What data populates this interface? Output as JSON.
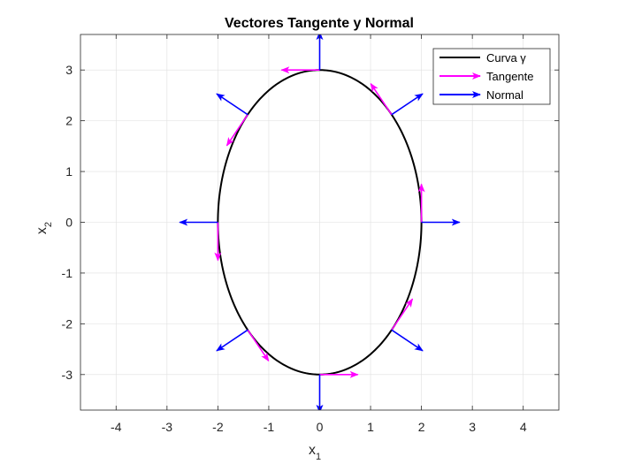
{
  "chart_data": {
    "type": "line",
    "title": "Vectores Tangente y Normal",
    "xlabel": {
      "base": "x",
      "subscript": "1"
    },
    "ylabel": {
      "base": "x",
      "subscript": "2"
    },
    "xlim": [
      -4.7,
      4.7
    ],
    "ylim": [
      -3.7,
      3.7
    ],
    "xticks": [
      -4,
      -3,
      -2,
      -1,
      0,
      1,
      2,
      3,
      4
    ],
    "yticks": [
      -3,
      -2,
      -1,
      0,
      1,
      2,
      3
    ],
    "xtick_labels": [
      "-4",
      "-3",
      "-2",
      "-1",
      "0",
      "1",
      "2",
      "3",
      "4"
    ],
    "ytick_labels": [
      "-3",
      "-2",
      "-1",
      "0",
      "1",
      "2",
      "3"
    ],
    "grid": true,
    "legend_position": "top-right",
    "curve": {
      "name": "Curva γ",
      "color": "#000000",
      "equation": "x1 = 2cos(t), x2 = 3sin(t)",
      "a": 2,
      "b": 3
    },
    "tangent_series": {
      "name": "Tangente",
      "color": "#ff00ff",
      "vectors": [
        {
          "x": 2.0,
          "y": 0.0,
          "u": 0.0,
          "v": 0.75
        },
        {
          "x": 1.414,
          "y": 2.121,
          "u": -0.41,
          "v": 0.61
        },
        {
          "x": 0.0,
          "y": 3.0,
          "u": -0.75,
          "v": 0.0
        },
        {
          "x": -1.414,
          "y": 2.121,
          "u": -0.41,
          "v": -0.61
        },
        {
          "x": -2.0,
          "y": 0.0,
          "u": 0.0,
          "v": -0.75
        },
        {
          "x": -1.414,
          "y": -2.121,
          "u": 0.41,
          "v": -0.61
        },
        {
          "x": 0.0,
          "y": -3.0,
          "u": 0.75,
          "v": 0.0
        },
        {
          "x": 1.414,
          "y": -2.121,
          "u": 0.41,
          "v": 0.61
        }
      ]
    },
    "normal_series": {
      "name": "Normal",
      "color": "#0000ff",
      "vectors": [
        {
          "x": 2.0,
          "y": 0.0,
          "u": 0.75,
          "v": 0.0
        },
        {
          "x": 1.414,
          "y": 2.121,
          "u": 0.61,
          "v": 0.41
        },
        {
          "x": 0.0,
          "y": 3.0,
          "u": 0.0,
          "v": 0.75
        },
        {
          "x": -1.414,
          "y": 2.121,
          "u": -0.61,
          "v": 0.41
        },
        {
          "x": -2.0,
          "y": 0.0,
          "u": -0.75,
          "v": 0.0
        },
        {
          "x": -1.414,
          "y": -2.121,
          "u": -0.61,
          "v": -0.41
        },
        {
          "x": 0.0,
          "y": -3.0,
          "u": 0.0,
          "v": -0.75
        },
        {
          "x": 1.414,
          "y": -2.121,
          "u": 0.61,
          "v": -0.41
        }
      ]
    }
  }
}
